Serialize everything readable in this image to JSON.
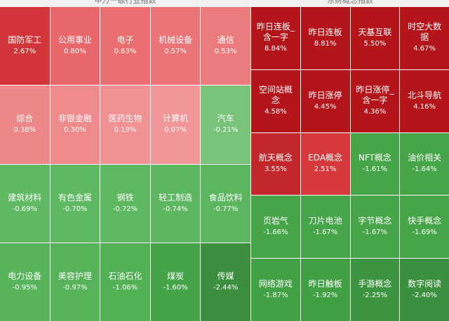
{
  "left": {
    "title": "申万一级行业指数",
    "columns": 5,
    "tiles": [
      {
        "name": "国防军工",
        "change": "2.67%",
        "color": "#d2363a"
      },
      {
        "name": "公用事业",
        "change": "0.80%",
        "color": "#e8676a"
      },
      {
        "name": "电子",
        "change": "0.63%",
        "color": "#ea6f71"
      },
      {
        "name": "机械设备",
        "change": "0.57%",
        "color": "#eb7477"
      },
      {
        "name": "通信",
        "change": "0.53%",
        "color": "#ec7b7d"
      },
      {
        "name": "综合",
        "change": "0.38%",
        "color": "#ee8789"
      },
      {
        "name": "非银金融",
        "change": "0.30%",
        "color": "#ef8b8d"
      },
      {
        "name": "医药生物",
        "change": "0.19%",
        "color": "#f09193"
      },
      {
        "name": "计算机",
        "change": "0.07%",
        "color": "#f19799"
      },
      {
        "name": "汽车",
        "change": "-0.21%",
        "color": "#79c37b"
      },
      {
        "name": "建筑材料",
        "change": "-0.69%",
        "color": "#5fb862"
      },
      {
        "name": "有色金属",
        "change": "-0.70%",
        "color": "#5fb862"
      },
      {
        "name": "钢铁",
        "change": "-0.72%",
        "color": "#5eb761"
      },
      {
        "name": "轻工制造",
        "change": "-0.74%",
        "color": "#5db660"
      },
      {
        "name": "食品饮料",
        "change": "-0.77%",
        "color": "#5cb65f"
      },
      {
        "name": "电力设备",
        "change": "-0.95%",
        "color": "#57b45a"
      },
      {
        "name": "美容护理",
        "change": "-0.97%",
        "color": "#56b359"
      },
      {
        "name": "石油石化",
        "change": "-1.06%",
        "color": "#52b055"
      },
      {
        "name": "煤炭",
        "change": "-1.60%",
        "color": "#45a448"
      },
      {
        "name": "传媒",
        "change": "-2.44%",
        "color": "#3b8f3e"
      }
    ]
  },
  "right": {
    "title": "东财概念指数",
    "columns": 4,
    "tiles": [
      {
        "name": "昨日连板_含一字",
        "change": "8.84%",
        "color": "#b3151b"
      },
      {
        "name": "昨日连板",
        "change": "8.81%",
        "color": "#b3151b"
      },
      {
        "name": "天基互联",
        "change": "5.50%",
        "color": "#b3151b"
      },
      {
        "name": "时空大数据",
        "change": "4.67%",
        "color": "#b3151b"
      },
      {
        "name": "空间站概念",
        "change": "4.58%",
        "color": "#b3151b"
      },
      {
        "name": "昨日涨停",
        "change": "4.45%",
        "color": "#b3151b"
      },
      {
        "name": "昨日涨停_含一字",
        "change": "4.36%",
        "color": "#b3151b"
      },
      {
        "name": "北斗导航",
        "change": "4.16%",
        "color": "#b3151b"
      },
      {
        "name": "航天概念",
        "change": "3.55%",
        "color": "#c2272c"
      },
      {
        "name": "EDA概念",
        "change": "2.51%",
        "color": "#d6393c"
      },
      {
        "name": "NFT概念",
        "change": "-1.61%",
        "color": "#46a549"
      },
      {
        "name": "油价相关",
        "change": "-1.64%",
        "color": "#46a549"
      },
      {
        "name": "页岩气",
        "change": "-1.66%",
        "color": "#46a549"
      },
      {
        "name": "刀片电池",
        "change": "-1.67%",
        "color": "#46a549"
      },
      {
        "name": "字节概念",
        "change": "-1.67%",
        "color": "#46a549"
      },
      {
        "name": "快手概念",
        "change": "-1.69%",
        "color": "#46a549"
      },
      {
        "name": "网络游戏",
        "change": "-1.87%",
        "color": "#42a045"
      },
      {
        "name": "昨日触板",
        "change": "-1.92%",
        "color": "#419f44"
      },
      {
        "name": "手游概念",
        "change": "-2.25%",
        "color": "#3c9440"
      },
      {
        "name": "数字阅读",
        "change": "-2.40%",
        "color": "#3a903e"
      }
    ]
  }
}
